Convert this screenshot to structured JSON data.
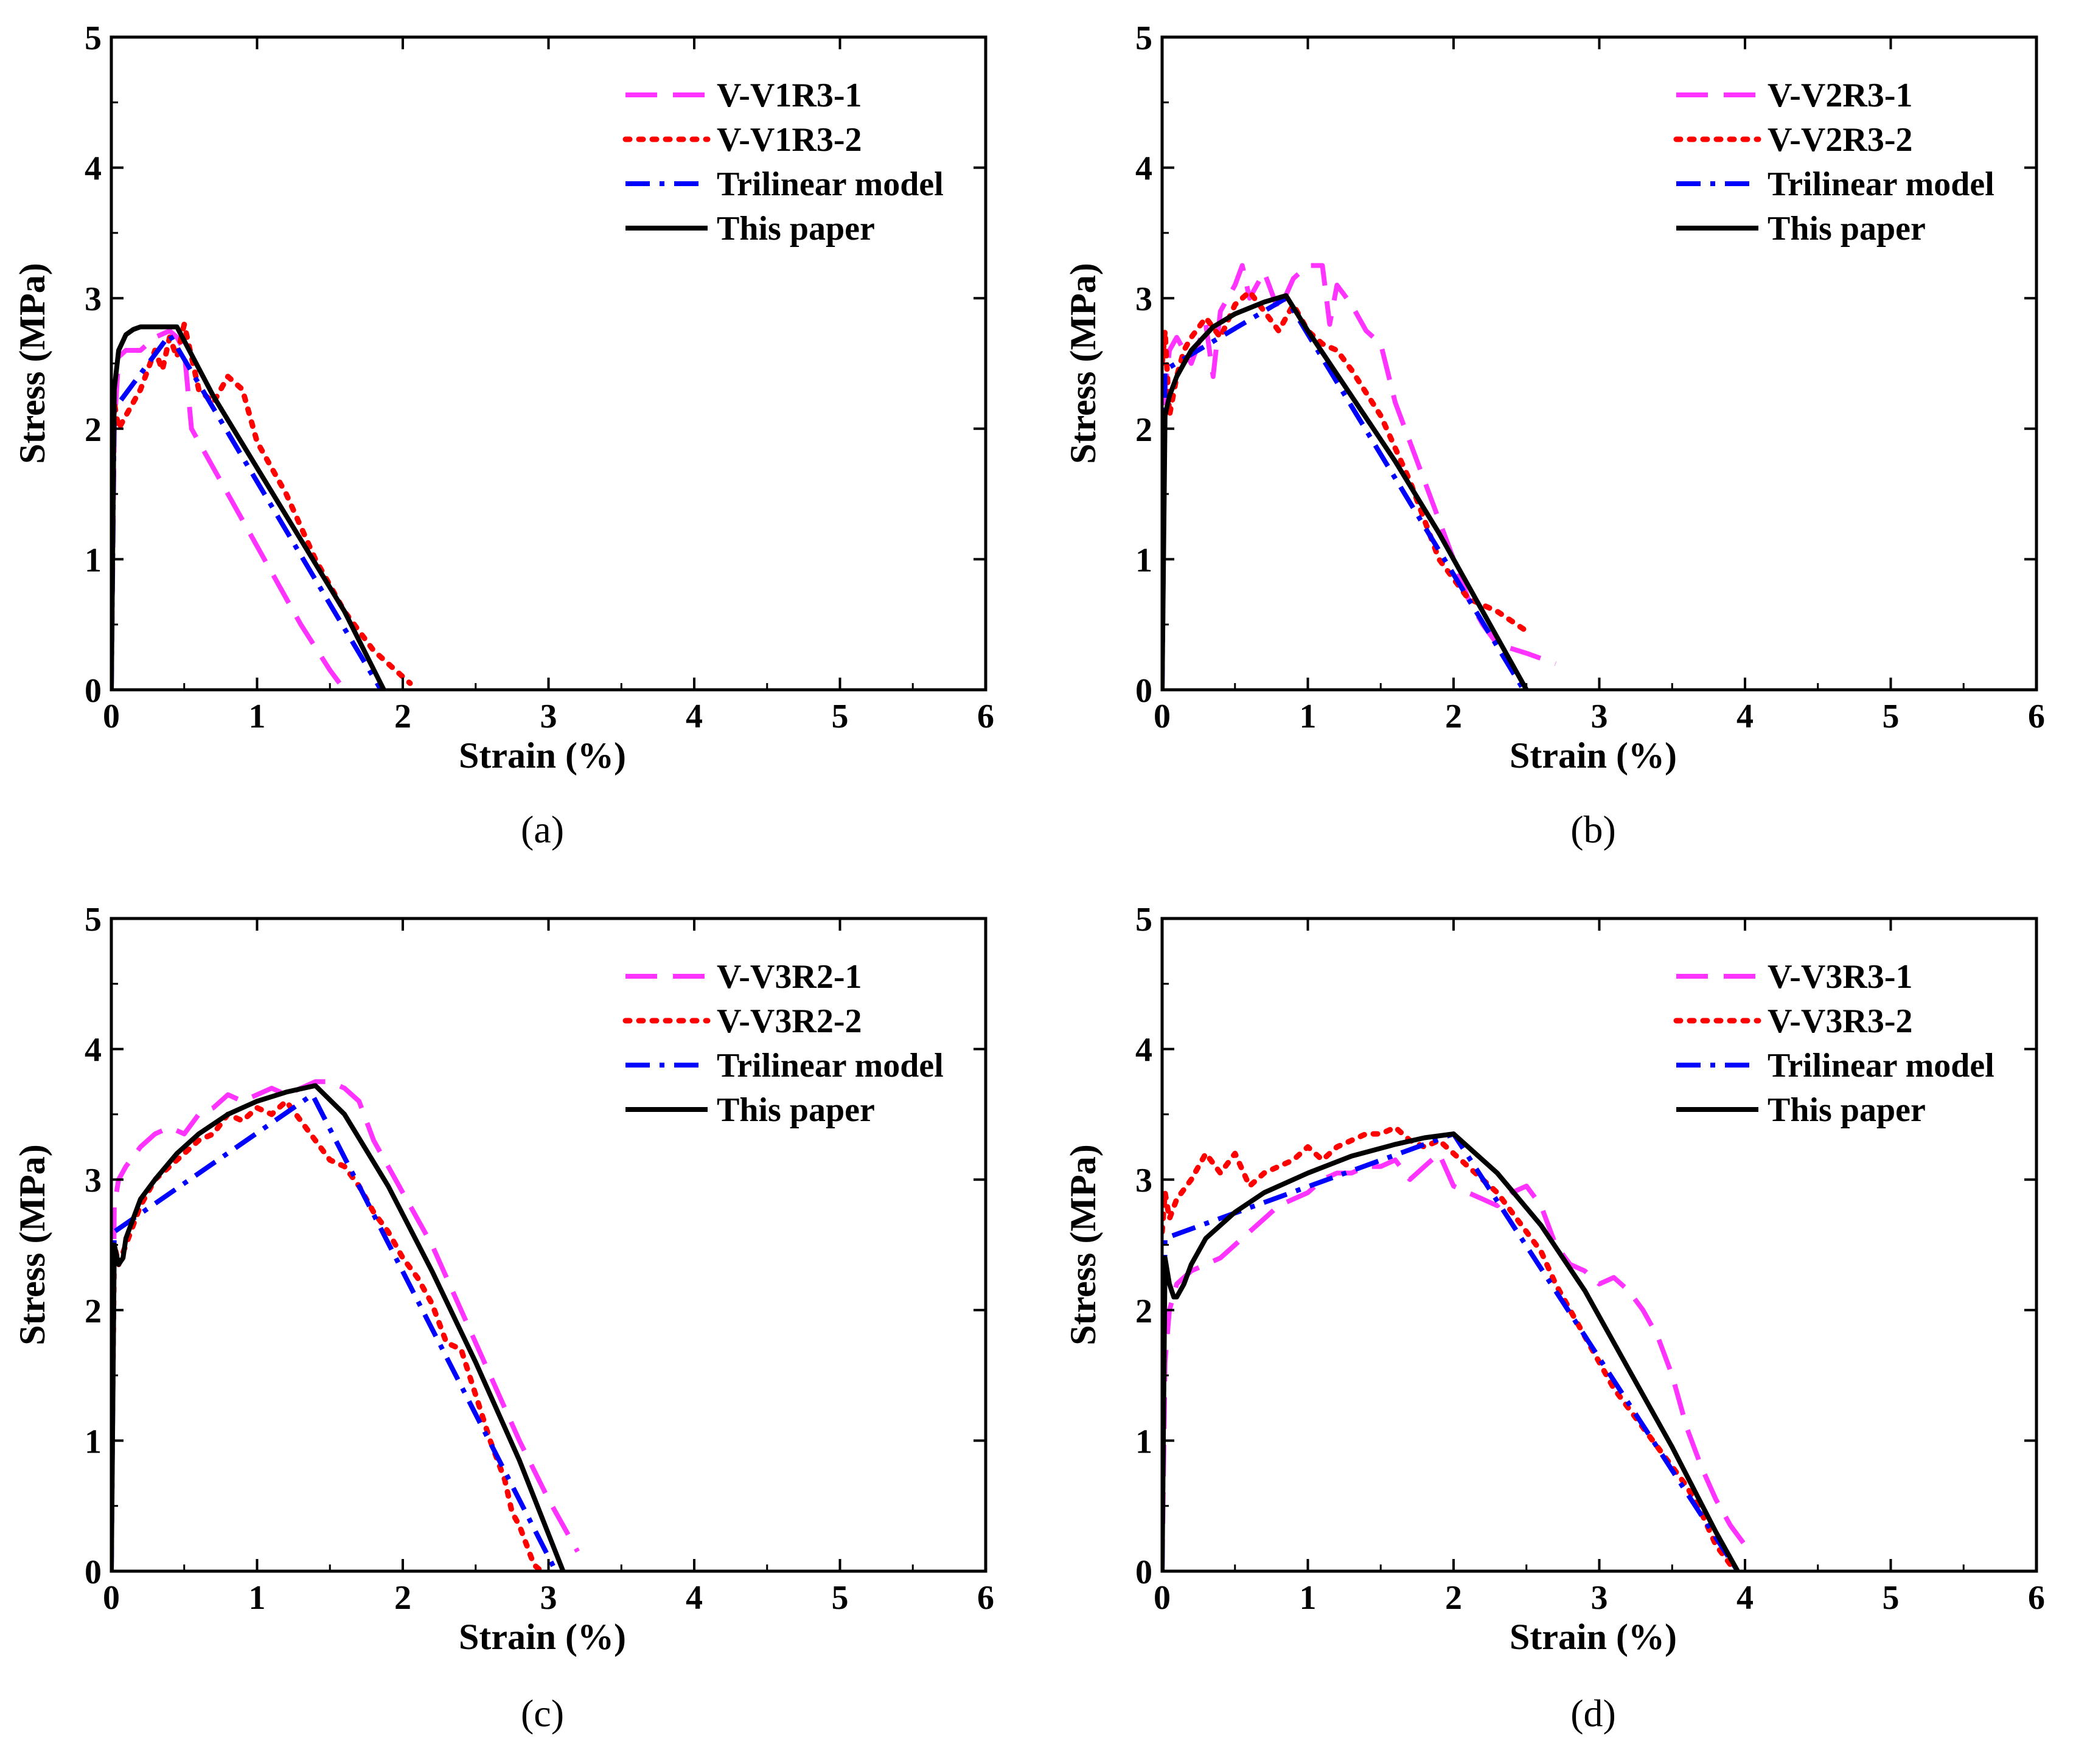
{
  "figure": {
    "xlabel": "Strain (%)",
    "ylabel": "Stress (MPa)"
  },
  "colors": {
    "magenta": "#ff33ff",
    "red": "#ff0000",
    "blue": "#0000ff",
    "black": "#000000"
  },
  "chart_data": [
    {
      "type": "line",
      "panel_label": "(a)",
      "xlabel": "Strain (%)",
      "ylabel": "Stress (MPa)",
      "xlim": [
        0,
        6
      ],
      "ylim": [
        0,
        5
      ],
      "xticks": [
        "0",
        "1",
        "2",
        "3",
        "4",
        "5",
        "6"
      ],
      "yticks": [
        "0",
        "1",
        "2",
        "3",
        "4",
        "5"
      ],
      "legend_position": "top-right",
      "series": [
        {
          "name": "V-V1R3-1",
          "style": "dashed",
          "color": "#ff33ff",
          "x": [
            0,
            0.02,
            0.05,
            0.1,
            0.2,
            0.3,
            0.4,
            0.45,
            0.5,
            0.55,
            0.7,
            0.9,
            1.1,
            1.3,
            1.5,
            1.6
          ],
          "y": [
            0,
            2.0,
            2.55,
            2.6,
            2.6,
            2.7,
            2.75,
            2.7,
            2.6,
            2.0,
            1.7,
            1.3,
            0.9,
            0.5,
            0.15,
            0
          ]
        },
        {
          "name": "V-V1R3-2",
          "style": "dotted",
          "color": "#ff0000",
          "x": [
            0,
            0.02,
            0.05,
            0.1,
            0.2,
            0.3,
            0.35,
            0.4,
            0.45,
            0.5,
            0.6,
            0.7,
            0.8,
            0.9,
            1.0,
            1.2,
            1.4,
            1.6,
            1.8,
            1.9,
            2.0,
            2.05
          ],
          "y": [
            1.2,
            2.2,
            2.0,
            2.1,
            2.3,
            2.6,
            2.45,
            2.7,
            2.55,
            2.8,
            2.3,
            2.2,
            2.4,
            2.3,
            1.9,
            1.5,
            1.0,
            0.6,
            0.3,
            0.2,
            0.1,
            0.05
          ]
        },
        {
          "name": "Trilinear model",
          "style": "dashdot",
          "color": "#0000ff",
          "x": [
            0,
            0.02,
            0.4,
            1.85
          ],
          "y": [
            0,
            2.15,
            2.72,
            0
          ]
        },
        {
          "name": "This paper",
          "style": "solid",
          "color": "#000000",
          "x": [
            0,
            0.02,
            0.05,
            0.1,
            0.15,
            0.2,
            0.3,
            0.45,
            0.7,
            1.0,
            1.3,
            1.6,
            1.87
          ],
          "y": [
            0,
            2.3,
            2.6,
            2.72,
            2.76,
            2.78,
            2.78,
            2.78,
            2.25,
            1.7,
            1.15,
            0.6,
            0
          ]
        }
      ]
    },
    {
      "type": "line",
      "panel_label": "(b)",
      "xlabel": "Strain (%)",
      "ylabel": "Stress (MPa)",
      "xlim": [
        0,
        6
      ],
      "ylim": [
        0,
        5
      ],
      "xticks": [
        "0",
        "1",
        "2",
        "3",
        "4",
        "5",
        "6"
      ],
      "yticks": [
        "0",
        "1",
        "2",
        "3",
        "4",
        "5"
      ],
      "legend_position": "top-right",
      "series": [
        {
          "name": "V-V2R3-1",
          "style": "dashed",
          "color": "#ff33ff",
          "x": [
            0,
            0.02,
            0.05,
            0.1,
            0.2,
            0.3,
            0.35,
            0.4,
            0.5,
            0.55,
            0.6,
            0.7,
            0.8,
            0.9,
            1.0,
            1.1,
            1.15,
            1.2,
            1.3,
            1.4,
            1.5,
            1.6,
            1.7,
            1.8,
            1.9,
            2.0,
            2.1,
            2.2,
            2.3,
            2.5,
            2.7
          ],
          "y": [
            0,
            2.3,
            2.6,
            2.7,
            2.5,
            2.8,
            2.4,
            2.9,
            3.1,
            3.25,
            3.0,
            3.2,
            2.9,
            3.15,
            3.25,
            3.25,
            2.8,
            3.1,
            2.95,
            2.75,
            2.65,
            2.2,
            1.9,
            1.6,
            1.3,
            1.0,
            0.7,
            0.5,
            0.35,
            0.28,
            0.2
          ]
        },
        {
          "name": "V-V2R3-2",
          "style": "dotted",
          "color": "#ff0000",
          "x": [
            0,
            0.02,
            0.05,
            0.1,
            0.15,
            0.2,
            0.3,
            0.4,
            0.5,
            0.6,
            0.7,
            0.8,
            0.9,
            1.0,
            1.1,
            1.2,
            1.3,
            1.5,
            1.7,
            1.9,
            2.1,
            2.3,
            2.5
          ],
          "y": [
            2.5,
            2.75,
            2.1,
            2.4,
            2.6,
            2.7,
            2.85,
            2.7,
            2.95,
            3.05,
            2.9,
            2.75,
            2.95,
            2.75,
            2.65,
            2.6,
            2.45,
            2.1,
            1.6,
            1.0,
            0.7,
            0.6,
            0.45
          ]
        },
        {
          "name": "Trilinear model",
          "style": "dashdot",
          "color": "#0000ff",
          "x": [
            0,
            0.02,
            0.85,
            2.48
          ],
          "y": [
            0,
            2.45,
            3.0,
            0
          ]
        },
        {
          "name": "This paper",
          "style": "solid",
          "color": "#000000",
          "x": [
            0,
            0.02,
            0.05,
            0.1,
            0.2,
            0.35,
            0.5,
            0.7,
            0.85,
            1.0,
            1.3,
            1.6,
            1.9,
            2.2,
            2.5
          ],
          "y": [
            0,
            2.1,
            2.25,
            2.4,
            2.6,
            2.78,
            2.88,
            2.97,
            3.02,
            2.75,
            2.25,
            1.75,
            1.2,
            0.6,
            0
          ]
        }
      ]
    },
    {
      "type": "line",
      "panel_label": "(c)",
      "xlabel": "Strain (%)",
      "ylabel": "Stress (MPa)",
      "xlim": [
        0,
        6
      ],
      "ylim": [
        0,
        5
      ],
      "xticks": [
        "0",
        "1",
        "2",
        "3",
        "4",
        "5",
        "6"
      ],
      "yticks": [
        "0",
        "1",
        "2",
        "3",
        "4",
        "5"
      ],
      "legend_position": "top-right",
      "series": [
        {
          "name": "V-V3R2-1",
          "style": "dashed",
          "color": "#ff33ff",
          "x": [
            0,
            0.02,
            0.05,
            0.1,
            0.2,
            0.3,
            0.4,
            0.5,
            0.6,
            0.7,
            0.8,
            0.9,
            1.0,
            1.1,
            1.2,
            1.3,
            1.4,
            1.5,
            1.6,
            1.7,
            1.8,
            2.0,
            2.2,
            2.4,
            2.6,
            2.8,
            3.0,
            3.1,
            3.2
          ],
          "y": [
            0,
            2.8,
            3.0,
            3.1,
            3.25,
            3.35,
            3.4,
            3.35,
            3.5,
            3.55,
            3.65,
            3.6,
            3.65,
            3.7,
            3.65,
            3.7,
            3.75,
            3.75,
            3.7,
            3.6,
            3.3,
            2.9,
            2.5,
            2.0,
            1.5,
            1.0,
            0.55,
            0.35,
            0.15
          ]
        },
        {
          "name": "V-V3R2-2",
          "style": "dotted",
          "color": "#ff0000",
          "x": [
            0,
            0.02,
            0.05,
            0.1,
            0.2,
            0.3,
            0.4,
            0.5,
            0.6,
            0.7,
            0.8,
            0.9,
            1.0,
            1.1,
            1.2,
            1.3,
            1.4,
            1.5,
            1.6,
            1.7,
            1.8,
            1.9,
            2.0,
            2.1,
            2.2,
            2.3,
            2.4,
            2.5,
            2.6,
            2.7,
            2.75,
            2.8,
            2.85,
            2.9,
            2.95
          ],
          "y": [
            0.5,
            2.5,
            2.35,
            2.5,
            2.8,
            3.0,
            3.1,
            3.2,
            3.3,
            3.35,
            3.5,
            3.45,
            3.55,
            3.5,
            3.6,
            3.45,
            3.3,
            3.15,
            3.1,
            2.95,
            2.75,
            2.6,
            2.4,
            2.25,
            2.05,
            1.75,
            1.7,
            1.35,
            1.0,
            0.7,
            0.45,
            0.35,
            0.2,
            0.05,
            0
          ]
        },
        {
          "name": "Trilinear model",
          "style": "dashdot",
          "color": "#0000ff",
          "x": [
            0,
            0.02,
            1.38,
            3.05
          ],
          "y": [
            0,
            2.6,
            3.65,
            0
          ]
        },
        {
          "name": "This paper",
          "style": "solid",
          "color": "#000000",
          "x": [
            0,
            0.02,
            0.05,
            0.08,
            0.1,
            0.15,
            0.2,
            0.3,
            0.45,
            0.6,
            0.8,
            1.0,
            1.2,
            1.4,
            1.6,
            1.9,
            2.2,
            2.5,
            2.8,
            3.1
          ],
          "y": [
            0,
            2.5,
            2.35,
            2.4,
            2.55,
            2.7,
            2.85,
            3.0,
            3.2,
            3.35,
            3.5,
            3.6,
            3.67,
            3.72,
            3.5,
            2.95,
            2.3,
            1.6,
            0.85,
            0
          ]
        }
      ]
    },
    {
      "type": "line",
      "panel_label": "(d)",
      "xlabel": "Strain (%)",
      "ylabel": "Stress (MPa)",
      "xlim": [
        0,
        6
      ],
      "ylim": [
        0,
        5
      ],
      "xticks": [
        "0",
        "1",
        "2",
        "3",
        "4",
        "5",
        "6"
      ],
      "yticks": [
        "0",
        "1",
        "2",
        "3",
        "4",
        "5"
      ],
      "legend_position": "top-right",
      "series": [
        {
          "name": "V-V3R3-1",
          "style": "dashed",
          "color": "#ff33ff",
          "x": [
            0,
            0.02,
            0.05,
            0.1,
            0.2,
            0.3,
            0.4,
            0.5,
            0.6,
            0.7,
            0.8,
            0.9,
            1.0,
            1.1,
            1.2,
            1.3,
            1.4,
            1.5,
            1.6,
            1.7,
            1.8,
            1.9,
            2.0,
            2.1,
            2.2,
            2.3,
            2.4,
            2.5,
            2.6,
            2.7,
            2.8,
            2.9,
            3.0,
            3.1,
            3.2,
            3.3,
            3.4,
            3.5,
            3.6,
            3.7,
            3.8,
            3.9,
            4.0,
            4.05
          ],
          "y": [
            0,
            1.6,
            2.0,
            2.2,
            2.3,
            2.35,
            2.4,
            2.5,
            2.6,
            2.7,
            2.8,
            2.85,
            2.9,
            3.0,
            3.05,
            3.05,
            3.1,
            3.1,
            3.15,
            3.0,
            3.1,
            3.2,
            2.95,
            2.9,
            2.85,
            2.8,
            2.9,
            2.95,
            2.8,
            2.5,
            2.35,
            2.3,
            2.2,
            2.25,
            2.15,
            2.0,
            1.8,
            1.5,
            1.1,
            0.8,
            0.55,
            0.35,
            0.2,
            0.15
          ]
        },
        {
          "name": "V-V3R3-2",
          "style": "dotted",
          "color": "#ff0000",
          "x": [
            0,
            0.02,
            0.05,
            0.1,
            0.2,
            0.3,
            0.4,
            0.5,
            0.6,
            0.7,
            0.8,
            0.9,
            1.0,
            1.1,
            1.2,
            1.3,
            1.4,
            1.5,
            1.6,
            1.7,
            1.8,
            1.9,
            2.0,
            2.1,
            2.2,
            2.3,
            2.4,
            2.5,
            2.6,
            2.7,
            2.8,
            2.9,
            3.0,
            3.1,
            3.2,
            3.3,
            3.4,
            3.5,
            3.6,
            3.7,
            3.8,
            3.9
          ],
          "y": [
            2.6,
            2.9,
            2.7,
            2.85,
            3.0,
            3.2,
            3.05,
            3.2,
            2.95,
            3.05,
            3.1,
            3.15,
            3.25,
            3.15,
            3.25,
            3.3,
            3.35,
            3.35,
            3.4,
            3.3,
            3.25,
            3.3,
            3.2,
            3.1,
            3.0,
            2.9,
            2.75,
            2.6,
            2.45,
            2.2,
            2.0,
            1.8,
            1.6,
            1.4,
            1.25,
            1.1,
            0.95,
            0.8,
            0.65,
            0.45,
            0.2,
            0.05
          ]
        },
        {
          "name": "Trilinear model",
          "style": "dashdot",
          "color": "#0000ff",
          "x": [
            0,
            0.02,
            2.0,
            3.95
          ],
          "y": [
            0,
            2.55,
            3.35,
            0
          ]
        },
        {
          "name": "This paper",
          "style": "solid",
          "color": "#000000",
          "x": [
            0,
            0.02,
            0.05,
            0.08,
            0.1,
            0.15,
            0.2,
            0.3,
            0.5,
            0.7,
            1.0,
            1.3,
            1.6,
            1.8,
            2.0,
            2.3,
            2.6,
            2.9,
            3.2,
            3.5,
            3.8,
            3.95
          ],
          "y": [
            0,
            2.4,
            2.2,
            2.1,
            2.1,
            2.2,
            2.35,
            2.55,
            2.75,
            2.9,
            3.05,
            3.18,
            3.27,
            3.32,
            3.35,
            3.05,
            2.65,
            2.15,
            1.55,
            0.95,
            0.3,
            0
          ]
        }
      ]
    }
  ]
}
